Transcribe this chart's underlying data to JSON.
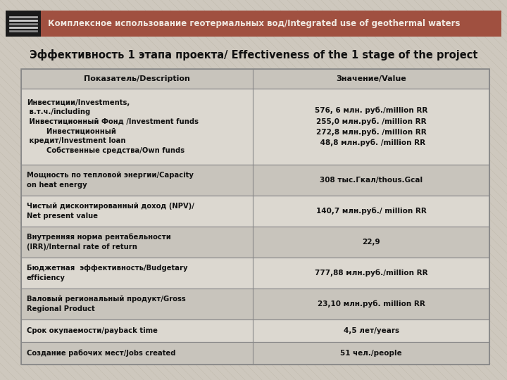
{
  "bg_color": "#cec8be",
  "header_bg": "#a05040",
  "header_text_color": "#f0e8e0",
  "header_text": "Комплексное использование геотермальных вод/Integrated use of geothermal waters",
  "subtitle": "Эффективность 1 этапа проекта/ Effectiveness of the 1 stage of the project",
  "table_header_col1": "Показатель/Description",
  "table_header_col2": "Значение/Value",
  "table_border_color": "#888888",
  "table_header_bg": "#c8c4bc",
  "row_bg_light": "#dcd8d0",
  "row_bg_dark": "#c8c4bc",
  "icon_bg": "#1a1a1a",
  "rows": [
    {
      "col1": "Инвестиции/Investments,\n в.т.ч./including\n Инвестиционный Фонд /Investment funds\n        Инвестиционный\n кредит/Investment loan\n        Собственные средства/Own funds",
      "col2": "576, 6 млн. руб./million RR\n255,0 млн.руб. /million RR\n272,8 млн.руб. /million RR\n 48,8 млн.руб. /million RR",
      "tall": true
    },
    {
      "col1": "Мощность по тепловой энергии/Capacity\non heat energy",
      "col2": "308 тыс.Гкал/thous.Gcal",
      "tall": false
    },
    {
      "col1": "Чистый дисконтированный доход (NPV)/\nNet present value",
      "col2": "140,7 млн.руб./ million RR",
      "tall": false
    },
    {
      "col1": "Внутренняя норма рентабельности\n(IRR)/Internal rate of return",
      "col2": "22,9",
      "tall": false
    },
    {
      "col1": "Бюджетная  эффективность/Budgetary\nefficiency",
      "col2": "777,88 млн.руб./million RR",
      "tall": false
    },
    {
      "col1": "Валовый региональный продукт/Gross\nRegional Product",
      "col2": "23,10 млн.руб. million RR",
      "tall": false
    },
    {
      "col1": "Срок окупаемости/payback time",
      "col2": "4,5 лет/years",
      "tall": false
    },
    {
      "col1": "Создание рабочих мест/Jobs created",
      "col2": "51 чел./people",
      "tall": false
    }
  ]
}
